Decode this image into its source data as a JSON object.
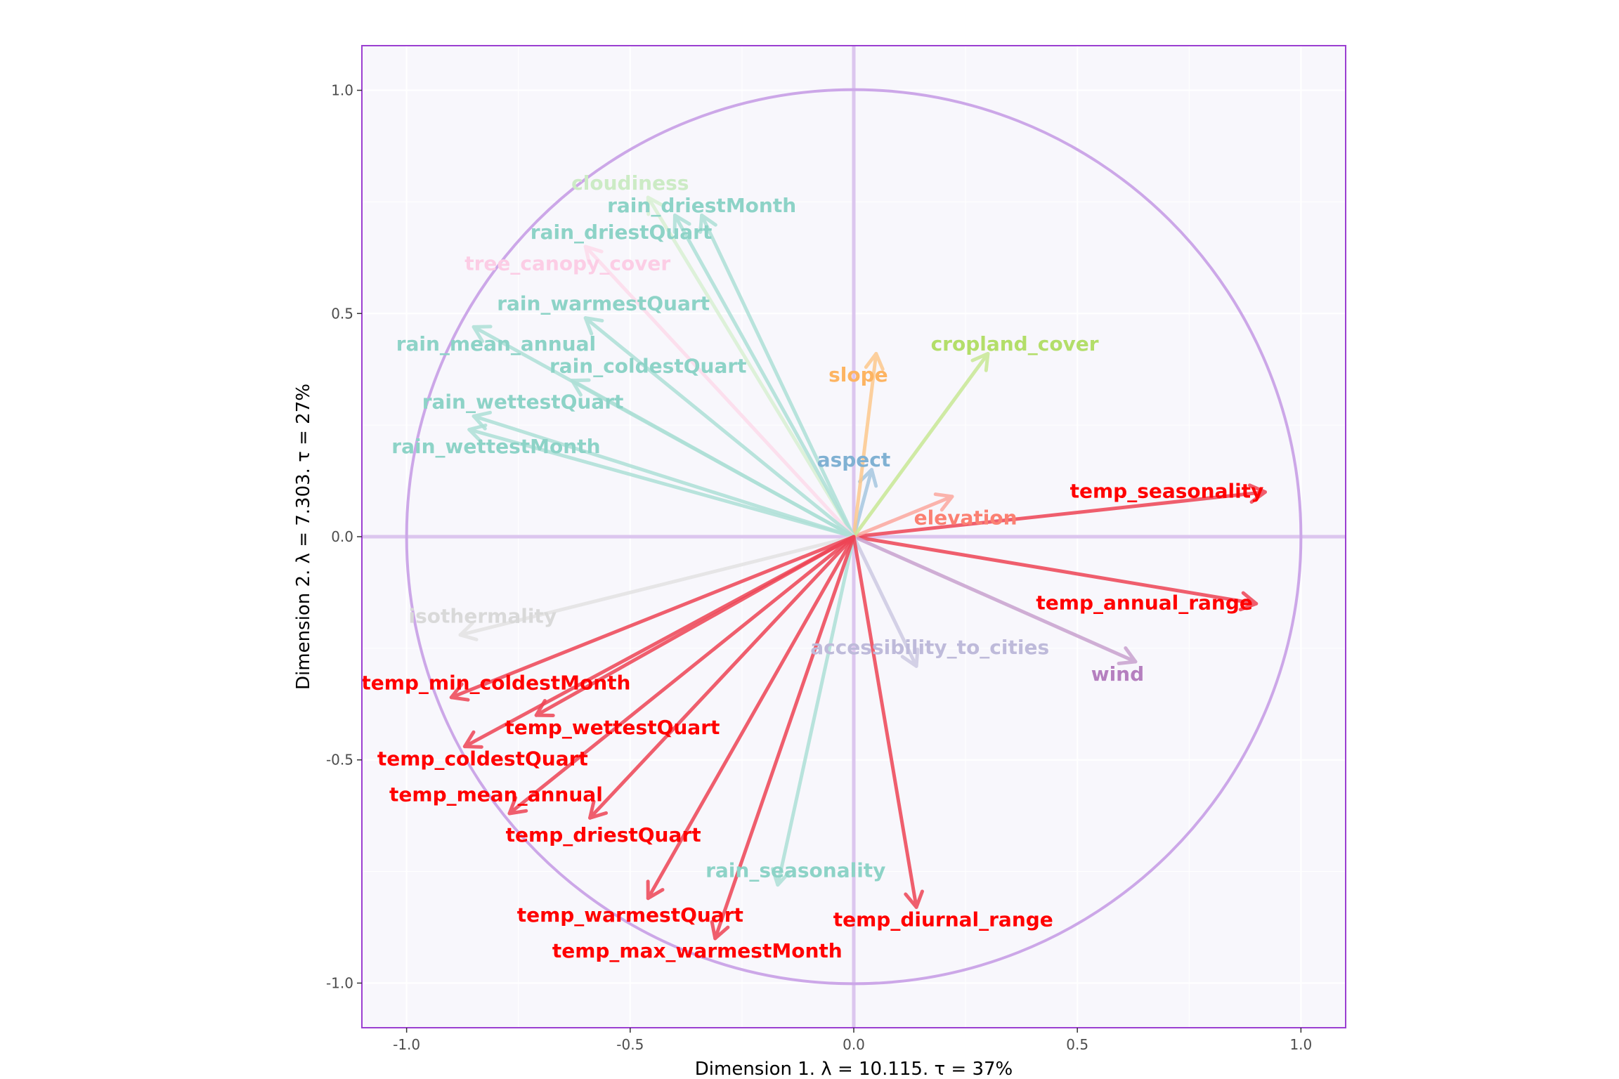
{
  "chart_data": {
    "type": "scatter",
    "subtype": "correlation-circle",
    "title": "",
    "xlabel": "Dimension 1.   λ = 10.115.  τ = 37%",
    "ylabel": "Dimension 2.   λ = 7.303.  τ = 27%",
    "xlim": [
      -1.1,
      1.1
    ],
    "ylim": [
      -1.1,
      1.1
    ],
    "x_ticks": [
      -1.0,
      -0.5,
      0.0,
      0.5,
      1.0
    ],
    "y_ticks": [
      -1.0,
      -0.5,
      0.0,
      0.5,
      1.0
    ],
    "x_tick_labels": [
      "-1.0",
      "-0.5",
      "0.0",
      "0.5",
      "1.0"
    ],
    "y_tick_labels": [
      "-1.0",
      "-0.5",
      "0.0",
      "0.5",
      "1.0"
    ],
    "grid": true,
    "unit_circle": true,
    "colors": {
      "panel_bg": "#f8f7fc",
      "panel_border": "#9b3fd1",
      "circle": "#cca7e8",
      "zero_lines": "#dcc6ee",
      "grid": "#ffffff"
    },
    "vectors": [
      {
        "name": "temp_seasonality",
        "x": 0.92,
        "y": 0.1,
        "color": "#ff0000",
        "arrow_color": "#ee4455",
        "label_x": 0.7,
        "label_y": 0.1
      },
      {
        "name": "temp_annual_range",
        "x": 0.9,
        "y": -0.15,
        "color": "#ff0000",
        "arrow_color": "#ee4455",
        "label_x": 0.65,
        "label_y": -0.15
      },
      {
        "name": "wind",
        "x": 0.63,
        "y": -0.28,
        "color": "#b57fbf",
        "arrow_color": "#c9a2cf",
        "label_x": 0.59,
        "label_y": -0.31
      },
      {
        "name": "accessibility_to_cities",
        "x": 0.14,
        "y": -0.29,
        "color": "#bebada",
        "arrow_color": "#cdcae3",
        "label_x": 0.17,
        "label_y": -0.25
      },
      {
        "name": "elevation",
        "x": 0.22,
        "y": 0.09,
        "color": "#fb8072",
        "arrow_color": "#fca89f",
        "label_x": 0.25,
        "label_y": 0.04
      },
      {
        "name": "aspect",
        "x": 0.04,
        "y": 0.15,
        "color": "#80b1d3",
        "arrow_color": "#a6c8e0",
        "label_x": 0.0,
        "label_y": 0.17
      },
      {
        "name": "slope",
        "x": 0.05,
        "y": 0.41,
        "color": "#fdb462",
        "arrow_color": "#fdc98d",
        "label_x": 0.01,
        "label_y": 0.36
      },
      {
        "name": "cropland_cover",
        "x": 0.3,
        "y": 0.41,
        "color": "#b3de69",
        "arrow_color": "#c9e895",
        "label_x": 0.36,
        "label_y": 0.43
      },
      {
        "name": "cloudiness",
        "x": -0.46,
        "y": 0.76,
        "color": "#ccebc5",
        "arrow_color": "#d9f0d3",
        "label_x": -0.5,
        "label_y": 0.79
      },
      {
        "name": "rain_driestMonth",
        "x": -0.34,
        "y": 0.72,
        "color": "#8dd3c7",
        "arrow_color": "#aee0d7",
        "label_x": -0.34,
        "label_y": 0.74
      },
      {
        "name": "rain_driestQuart",
        "x": -0.4,
        "y": 0.72,
        "color": "#8dd3c7",
        "arrow_color": "#aee0d7",
        "label_x": -0.52,
        "label_y": 0.68
      },
      {
        "name": "tree_canopy_cover",
        "x": -0.6,
        "y": 0.65,
        "color": "#fccde5",
        "arrow_color": "#fddbeb",
        "label_x": -0.64,
        "label_y": 0.61
      },
      {
        "name": "rain_warmestQuart",
        "x": -0.6,
        "y": 0.49,
        "color": "#8dd3c7",
        "arrow_color": "#aee0d7",
        "label_x": -0.56,
        "label_y": 0.52
      },
      {
        "name": "rain_mean_annual",
        "x": -0.85,
        "y": 0.47,
        "color": "#8dd3c7",
        "arrow_color": "#aee0d7",
        "label_x": -0.8,
        "label_y": 0.43
      },
      {
        "name": "rain_coldestQuart",
        "x": -0.63,
        "y": 0.35,
        "color": "#8dd3c7",
        "arrow_color": "#aee0d7",
        "label_x": -0.46,
        "label_y": 0.38
      },
      {
        "name": "rain_wettestQuart",
        "x": -0.85,
        "y": 0.27,
        "color": "#8dd3c7",
        "arrow_color": "#aee0d7",
        "label_x": -0.74,
        "label_y": 0.3
      },
      {
        "name": "rain_wettestMonth",
        "x": -0.86,
        "y": 0.24,
        "color": "#8dd3c7",
        "arrow_color": "#aee0d7",
        "label_x": -0.8,
        "label_y": 0.2
      },
      {
        "name": "isothermality",
        "x": -0.88,
        "y": -0.22,
        "color": "#d9d9d9",
        "arrow_color": "#e3e3e3",
        "label_x": -0.83,
        "label_y": -0.18
      },
      {
        "name": "temp_min_coldestMonth",
        "x": -0.9,
        "y": -0.36,
        "color": "#ff0000",
        "arrow_color": "#ee4455",
        "label_x": -0.8,
        "label_y": -0.33
      },
      {
        "name": "temp_wettestQuart",
        "x": -0.71,
        "y": -0.4,
        "color": "#ff0000",
        "arrow_color": "#ee4455",
        "label_x": -0.54,
        "label_y": -0.43
      },
      {
        "name": "temp_coldestQuart",
        "x": -0.87,
        "y": -0.47,
        "color": "#ff0000",
        "arrow_color": "#ee4455",
        "label_x": -0.83,
        "label_y": -0.5
      },
      {
        "name": "temp_mean_annual",
        "x": -0.77,
        "y": -0.62,
        "color": "#ff0000",
        "arrow_color": "#ee4455",
        "label_x": -0.8,
        "label_y": -0.58
      },
      {
        "name": "temp_driestQuart",
        "x": -0.59,
        "y": -0.63,
        "color": "#ff0000",
        "arrow_color": "#ee4455",
        "label_x": -0.56,
        "label_y": -0.67
      },
      {
        "name": "rain_seasonality",
        "x": -0.17,
        "y": -0.78,
        "color": "#8dd3c7",
        "arrow_color": "#aee0d7",
        "label_x": -0.13,
        "label_y": -0.75
      },
      {
        "name": "temp_warmestQuart",
        "x": -0.46,
        "y": -0.81,
        "color": "#ff0000",
        "arrow_color": "#ee4455",
        "label_x": -0.5,
        "label_y": -0.85
      },
      {
        "name": "temp_max_warmestMonth",
        "x": -0.31,
        "y": -0.9,
        "color": "#ff0000",
        "arrow_color": "#ee4455",
        "label_x": -0.35,
        "label_y": -0.93
      },
      {
        "name": "temp_diurnal_range",
        "x": 0.14,
        "y": -0.83,
        "color": "#ff0000",
        "arrow_color": "#ee4455",
        "label_x": 0.2,
        "label_y": -0.86
      }
    ]
  }
}
